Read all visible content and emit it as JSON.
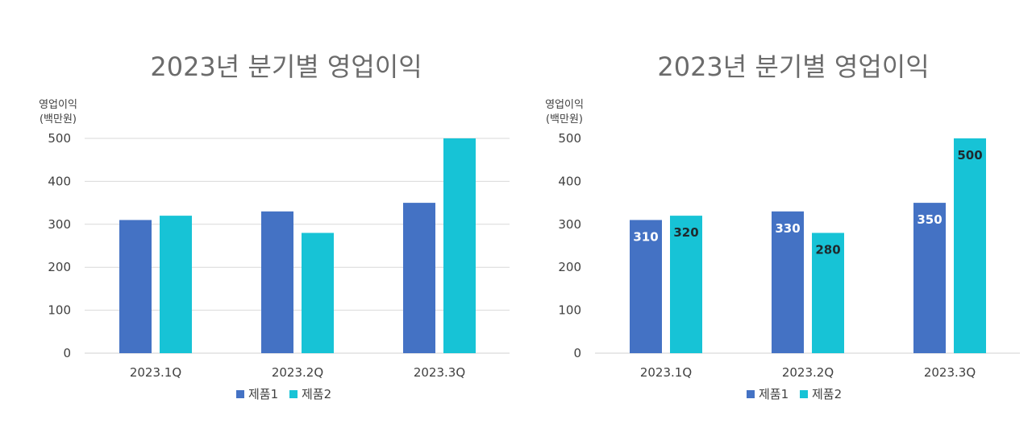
{
  "chart_data": [
    {
      "type": "bar",
      "title": "2023년 분기별 영업이익",
      "ylabel": "영업이익",
      "yunit": "(백만원)",
      "xlabel": "",
      "categories": [
        "2023.1Q",
        "2023.2Q",
        "2023.3Q"
      ],
      "series": [
        {
          "name": "제품1",
          "values": [
            310,
            330,
            350
          ],
          "color": "#4472c4"
        },
        {
          "name": "제품2",
          "values": [
            320,
            280,
            500
          ],
          "color": "#17c3d6"
        }
      ],
      "ylim": [
        0,
        500
      ],
      "yticks": [
        "0",
        "100",
        "200",
        "300",
        "400",
        "500"
      ],
      "grid": true,
      "data_labels": false,
      "legend": "bottom"
    },
    {
      "type": "bar",
      "title": "2023년 분기별 영업이익",
      "ylabel": "영업이익",
      "yunit": "(백만원)",
      "xlabel": "",
      "categories": [
        "2023.1Q",
        "2023.2Q",
        "2023.3Q"
      ],
      "series": [
        {
          "name": "제품1",
          "values": [
            310,
            330,
            350
          ],
          "color": "#4472c4",
          "label_color": "#ffffff"
        },
        {
          "name": "제품2",
          "values": [
            320,
            280,
            500
          ],
          "color": "#17c3d6",
          "label_color": "#1f2a2e"
        }
      ],
      "ylim": [
        0,
        500
      ],
      "yticks": [
        "0",
        "100",
        "200",
        "300",
        "400",
        "500"
      ],
      "grid": false,
      "data_labels": true,
      "legend": "bottom"
    }
  ],
  "colors": {
    "axis_text": "#404040",
    "title_text": "#6b6b6b",
    "grid": "#d9d9d9",
    "axis": "#d0d0d0"
  }
}
